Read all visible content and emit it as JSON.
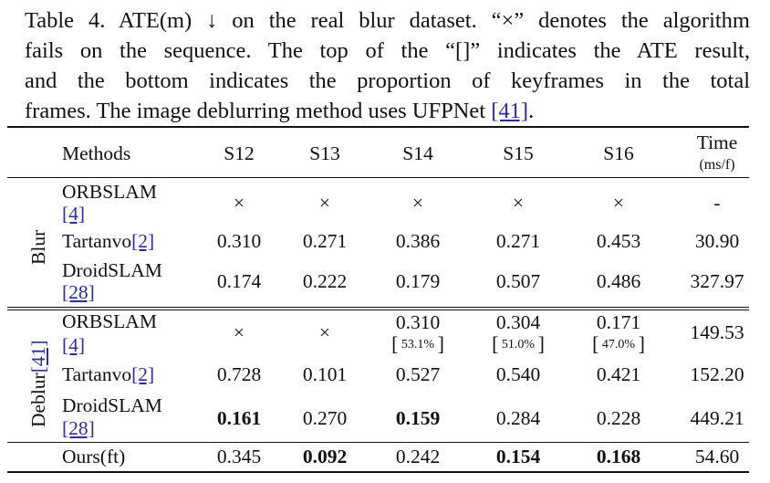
{
  "caption": {
    "lines": [
      "Table 4. ATE(m) ↓ on the real blur dataset. “×” denotes the algorithm",
      "fails on the sequence. The top of the “[]” indicates the ATE result,",
      "and the bottom indicates the proportion of keyframes in the total"
    ],
    "last_line_prefix": "frames. The image deblurring method uses UFPNet ",
    "last_line_cite": "[41]",
    "last_line_suffix": "."
  },
  "header": {
    "methods": "Methods",
    "cols": [
      "S12",
      "S13",
      "S14",
      "S15",
      "S16"
    ],
    "time_label": "Time",
    "time_unit": "(ms/f)"
  },
  "groups": {
    "blur": "Blur",
    "deblur": "Deblur",
    "deblur_cite": "[41]"
  },
  "rows": {
    "blur_orbslam": {
      "name": "ORBSLAM",
      "cite": "[4]",
      "values": [
        "×",
        "×",
        "×",
        "×",
        "×"
      ],
      "time": "-"
    },
    "blur_tartanvo": {
      "name": "Tartanvo",
      "cite": "[2]",
      "values": [
        "0.310",
        "0.271",
        "0.386",
        "0.271",
        "0.453"
      ],
      "time": "30.90"
    },
    "blur_droid": {
      "name": "DroidSLAM",
      "cite": "[28]",
      "values": [
        "0.174",
        "0.222",
        "0.179",
        "0.507",
        "0.486"
      ],
      "time": "327.97"
    },
    "deblur_orbslam": {
      "name": "ORBSLAM",
      "cite": "[4]",
      "values": [
        "×",
        "×",
        "0.310",
        "0.304",
        "0.171"
      ],
      "keyframes": [
        "",
        "",
        "53.1%",
        "51.0%",
        "47.0%"
      ],
      "time": "149.53"
    },
    "deblur_tartanvo": {
      "name": "Tartanvo",
      "cite": "[2]",
      "values": [
        "0.728",
        "0.101",
        "0.527",
        "0.540",
        "0.421"
      ],
      "time": "152.20"
    },
    "deblur_droid": {
      "name": "DroidSLAM",
      "cite": "[28]",
      "values": [
        "0.161",
        "0.270",
        "0.159",
        "0.284",
        "0.228"
      ],
      "time": "449.21"
    },
    "ours": {
      "name": "Ours(ft)",
      "values": [
        "0.345",
        "0.092",
        "0.242",
        "0.154",
        "0.168"
      ],
      "time": "54.60"
    }
  },
  "bold_cells": [
    "deblur_droid.0",
    "deblur_droid.2",
    "ours.1",
    "ours.3",
    "ours.4"
  ]
}
